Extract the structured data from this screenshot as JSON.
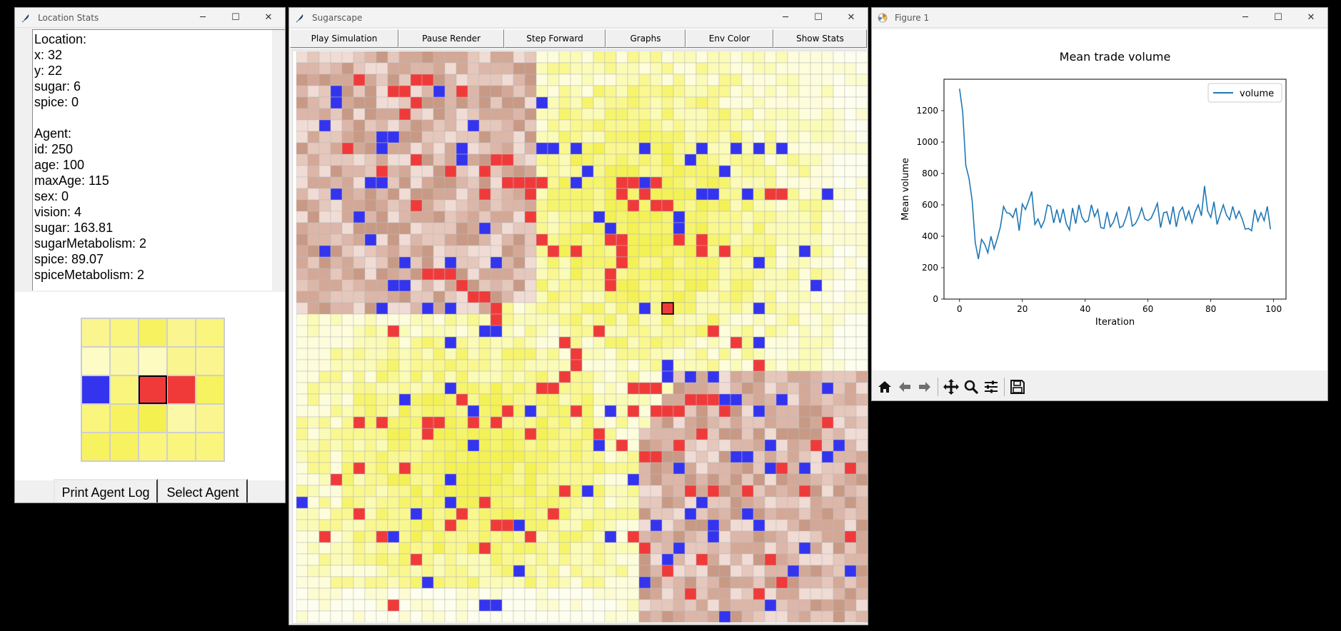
{
  "stats_window": {
    "title": "Location Stats",
    "lines": [
      "Location:",
      "x: 32",
      "y: 22",
      "sugar: 6",
      "spice: 0",
      "",
      "Agent:",
      "id: 250",
      "age: 100",
      "maxAge: 115",
      "sex: 0",
      "vision: 4",
      "sugar: 163.81",
      "sugarMetabolism: 2",
      "spice: 89.07",
      "spiceMetabolism: 2"
    ],
    "neighborhood": [
      [
        "#fbf58f",
        "#f9f57d",
        "#f7f25f",
        "#fbf58f",
        "#f9f57d"
      ],
      [
        "#fdfcc6",
        "#fbf8a7",
        "#fdfbc0",
        "#fbf58f",
        "#fbf58f"
      ],
      [
        "#3434ee",
        "#f9f57d",
        "#f03a3a",
        "#f03a3a",
        "#f7f25f"
      ],
      [
        "#f9f57d",
        "#f7f25f",
        "#f4f04f",
        "#fbf8a7",
        "#fbf58f"
      ],
      [
        "#f7f25f",
        "#f7f25f",
        "#f9f57d",
        "#f9f57d",
        "#f9f57d"
      ]
    ],
    "buttons": {
      "print_log": "Print Agent Log",
      "select_agent": "Select Agent"
    }
  },
  "sugar_window": {
    "title": "Sugarscape",
    "toolbar": [
      "Play Simulation",
      "Pause Render",
      "Step Forward",
      "Graphs",
      "Env Color",
      "Show Stats"
    ],
    "grid_size": 50,
    "selected_cell": [
      32,
      22
    ],
    "colors": {
      "agent_blue": "#3434ee",
      "agent_red": "#f03a3a"
    },
    "blue_agents": [
      [
        3,
        3
      ],
      [
        12,
        3
      ],
      [
        3,
        4
      ],
      [
        21,
        4
      ],
      [
        2,
        6
      ],
      [
        15,
        6
      ],
      [
        7,
        7
      ],
      [
        8,
        7
      ],
      [
        7,
        8
      ],
      [
        14,
        8
      ],
      [
        14,
        9
      ],
      [
        21,
        8
      ],
      [
        22,
        8
      ],
      [
        24,
        8
      ],
      [
        35,
        8
      ],
      [
        34,
        9
      ],
      [
        38,
        8
      ],
      [
        40,
        8
      ],
      [
        42,
        8
      ],
      [
        30,
        8
      ],
      [
        25,
        10
      ],
      [
        37,
        10
      ],
      [
        24,
        11
      ],
      [
        30,
        11
      ],
      [
        3,
        12
      ],
      [
        6,
        11
      ],
      [
        7,
        11
      ],
      [
        35,
        12
      ],
      [
        39,
        12
      ],
      [
        36,
        12
      ],
      [
        33,
        14
      ],
      [
        33,
        15
      ],
      [
        5,
        14
      ],
      [
        46,
        12
      ],
      [
        26,
        14
      ],
      [
        27,
        15
      ],
      [
        2,
        17
      ],
      [
        16,
        15
      ],
      [
        6,
        16
      ],
      [
        37,
        17
      ],
      [
        44,
        17
      ],
      [
        13,
        18
      ],
      [
        9,
        18
      ],
      [
        17,
        18
      ],
      [
        40,
        18
      ],
      [
        45,
        20
      ],
      [
        8,
        20
      ],
      [
        9,
        20
      ],
      [
        7,
        22
      ],
      [
        11,
        22
      ],
      [
        13,
        22
      ],
      [
        30,
        22
      ],
      [
        40,
        22
      ],
      [
        16,
        24
      ],
      [
        17,
        24
      ],
      [
        13,
        25
      ],
      [
        40,
        25
      ],
      [
        32,
        27
      ],
      [
        34,
        28
      ],
      [
        36,
        28
      ],
      [
        13,
        29
      ],
      [
        18,
        31
      ],
      [
        32,
        28
      ],
      [
        37,
        30
      ],
      [
        38,
        30
      ],
      [
        42,
        30
      ],
      [
        40,
        31
      ],
      [
        46,
        29
      ],
      [
        9,
        30
      ],
      [
        15,
        31
      ],
      [
        38,
        35
      ],
      [
        39,
        35
      ],
      [
        46,
        35
      ],
      [
        27,
        31
      ],
      [
        26,
        34
      ],
      [
        20,
        31
      ],
      [
        15,
        34
      ],
      [
        13,
        37
      ],
      [
        41,
        34
      ],
      [
        41,
        36
      ],
      [
        44,
        36
      ],
      [
        47,
        34
      ],
      [
        0,
        39
      ],
      [
        13,
        39
      ],
      [
        25,
        38
      ],
      [
        19,
        41
      ],
      [
        31,
        41
      ],
      [
        29,
        37
      ],
      [
        33,
        36
      ],
      [
        35,
        39
      ],
      [
        10,
        40
      ],
      [
        8,
        42
      ],
      [
        27,
        42
      ],
      [
        39,
        40
      ],
      [
        36,
        41
      ],
      [
        36,
        42
      ],
      [
        44,
        43
      ],
      [
        33,
        43
      ],
      [
        32,
        44
      ],
      [
        34,
        40
      ],
      [
        40,
        41
      ],
      [
        43,
        45
      ],
      [
        19,
        45
      ],
      [
        48,
        45
      ],
      [
        30,
        46
      ],
      [
        41,
        48
      ],
      [
        16,
        48
      ],
      [
        17,
        48
      ],
      [
        37,
        49
      ],
      [
        11,
        46
      ]
    ],
    "red_agents": [
      [
        10,
        2
      ],
      [
        11,
        2
      ],
      [
        5,
        2
      ],
      [
        8,
        3
      ],
      [
        9,
        3
      ],
      [
        14,
        3
      ],
      [
        10,
        4
      ],
      [
        9,
        5
      ],
      [
        4,
        8
      ],
      [
        10,
        9
      ],
      [
        7,
        10
      ],
      [
        13,
        10
      ],
      [
        17,
        9
      ],
      [
        18,
        9
      ],
      [
        16,
        10
      ],
      [
        18,
        11
      ],
      [
        19,
        11
      ],
      [
        20,
        11
      ],
      [
        21,
        11
      ],
      [
        16,
        12
      ],
      [
        20,
        12
      ],
      [
        10,
        13
      ],
      [
        20,
        14
      ],
      [
        28,
        11
      ],
      [
        29,
        11
      ],
      [
        31,
        11
      ],
      [
        28,
        12
      ],
      [
        30,
        12
      ],
      [
        35,
        16
      ],
      [
        35,
        17
      ],
      [
        37,
        17
      ],
      [
        41,
        12
      ],
      [
        42,
        12
      ],
      [
        31,
        13
      ],
      [
        21,
        16
      ],
      [
        22,
        17
      ],
      [
        24,
        17
      ],
      [
        29,
        13
      ],
      [
        32,
        13
      ],
      [
        33,
        16
      ],
      [
        36,
        24
      ],
      [
        38,
        25
      ],
      [
        40,
        27
      ],
      [
        28,
        16
      ],
      [
        27,
        16
      ],
      [
        28,
        17
      ],
      [
        28,
        18
      ],
      [
        27,
        19
      ],
      [
        27,
        20
      ],
      [
        12,
        19
      ],
      [
        11,
        19
      ],
      [
        13,
        19
      ],
      [
        14,
        20
      ],
      [
        15,
        21
      ],
      [
        16,
        21
      ],
      [
        17,
        22
      ],
      [
        17,
        23
      ],
      [
        26,
        24
      ],
      [
        23,
        25
      ],
      [
        24,
        26
      ],
      [
        24,
        27
      ],
      [
        29,
        29
      ],
      [
        30,
        29
      ],
      [
        31,
        29
      ],
      [
        35,
        30
      ],
      [
        36,
        30
      ],
      [
        37,
        31
      ],
      [
        45,
        34
      ],
      [
        35,
        33
      ],
      [
        29,
        31
      ],
      [
        31,
        31
      ],
      [
        32,
        31
      ],
      [
        33,
        31
      ],
      [
        34,
        30
      ],
      [
        21,
        29
      ],
      [
        22,
        29
      ],
      [
        23,
        28
      ],
      [
        8,
        24
      ],
      [
        14,
        30
      ],
      [
        12,
        32
      ],
      [
        11,
        33
      ],
      [
        15,
        32
      ],
      [
        17,
        32
      ],
      [
        18,
        31
      ],
      [
        20,
        33
      ],
      [
        24,
        31
      ],
      [
        26,
        33
      ],
      [
        28,
        34
      ],
      [
        30,
        35
      ],
      [
        31,
        35
      ],
      [
        33,
        34
      ],
      [
        34,
        38
      ],
      [
        36,
        38
      ],
      [
        39,
        38
      ],
      [
        42,
        36
      ],
      [
        44,
        38
      ],
      [
        46,
        32
      ],
      [
        48,
        36
      ],
      [
        48,
        42
      ],
      [
        29,
        42
      ],
      [
        30,
        43
      ],
      [
        35,
        44
      ],
      [
        41,
        44
      ],
      [
        23,
        38
      ],
      [
        22,
        40
      ],
      [
        17,
        41
      ],
      [
        18,
        41
      ],
      [
        16,
        39
      ],
      [
        14,
        40
      ],
      [
        13,
        41
      ],
      [
        16,
        43
      ],
      [
        20,
        42
      ],
      [
        7,
        42
      ],
      [
        9,
        36
      ],
      [
        11,
        32
      ],
      [
        5,
        32
      ],
      [
        7,
        32
      ],
      [
        5,
        36
      ],
      [
        3,
        37
      ],
      [
        2,
        42
      ],
      [
        5,
        40
      ],
      [
        10,
        44
      ],
      [
        8,
        48
      ],
      [
        32,
        45
      ],
      [
        34,
        47
      ],
      [
        40,
        47
      ],
      [
        42,
        46
      ]
    ]
  },
  "figure_window": {
    "title": "Figure 1",
    "chart_data": {
      "type": "line",
      "title": "Mean trade volume",
      "xlabel": "Iteration",
      "ylabel": "Mean volume",
      "xlim": [
        -4.95,
        103.95
      ],
      "ylim": [
        0,
        1400
      ],
      "xticks": [
        0,
        20,
        40,
        60,
        80,
        100
      ],
      "yticks": [
        0,
        200,
        400,
        600,
        800,
        1000,
        1200
      ],
      "legend_position": "upper right",
      "series": [
        {
          "name": "volume",
          "color": "#1f77b4",
          "x": [
            0,
            1,
            2,
            3,
            4,
            5,
            6,
            7,
            8,
            9,
            10,
            11,
            12,
            13,
            14,
            15,
            16,
            17,
            18,
            19,
            20,
            21,
            22,
            23,
            24,
            25,
            26,
            27,
            28,
            29,
            30,
            31,
            32,
            33,
            34,
            35,
            36,
            37,
            38,
            39,
            40,
            41,
            42,
            43,
            44,
            45,
            46,
            47,
            48,
            49,
            50,
            51,
            52,
            53,
            54,
            55,
            56,
            57,
            58,
            59,
            60,
            61,
            62,
            63,
            64,
            65,
            66,
            67,
            68,
            69,
            70,
            71,
            72,
            73,
            74,
            75,
            76,
            77,
            78,
            79,
            80,
            81,
            82,
            83,
            84,
            85,
            86,
            87,
            88,
            89,
            90,
            91,
            92,
            93,
            94,
            95,
            96,
            97,
            98,
            99
          ],
          "values": [
            1340,
            1190,
            850,
            770,
            630,
            360,
            255,
            380,
            350,
            295,
            400,
            320,
            385,
            460,
            590,
            550,
            545,
            520,
            580,
            435,
            605,
            570,
            625,
            685,
            475,
            510,
            455,
            500,
            600,
            590,
            485,
            570,
            485,
            575,
            480,
            440,
            580,
            480,
            600,
            520,
            490,
            500,
            600,
            525,
            570,
            455,
            450,
            555,
            460,
            490,
            550,
            455,
            465,
            520,
            590,
            465,
            480,
            520,
            580,
            510,
            500,
            515,
            560,
            610,
            455,
            550,
            555,
            475,
            590,
            460,
            555,
            585,
            505,
            560,
            485,
            555,
            600,
            530,
            720,
            560,
            520,
            620,
            475,
            540,
            600,
            535,
            505,
            590,
            515,
            560,
            510,
            445,
            450,
            435,
            570,
            495,
            550,
            500,
            590,
            445
          ]
        }
      ]
    },
    "toolbar_icons": [
      "home-icon",
      "back-icon",
      "forward-icon",
      "pan-icon",
      "zoom-icon",
      "configure-icon",
      "save-icon"
    ]
  }
}
